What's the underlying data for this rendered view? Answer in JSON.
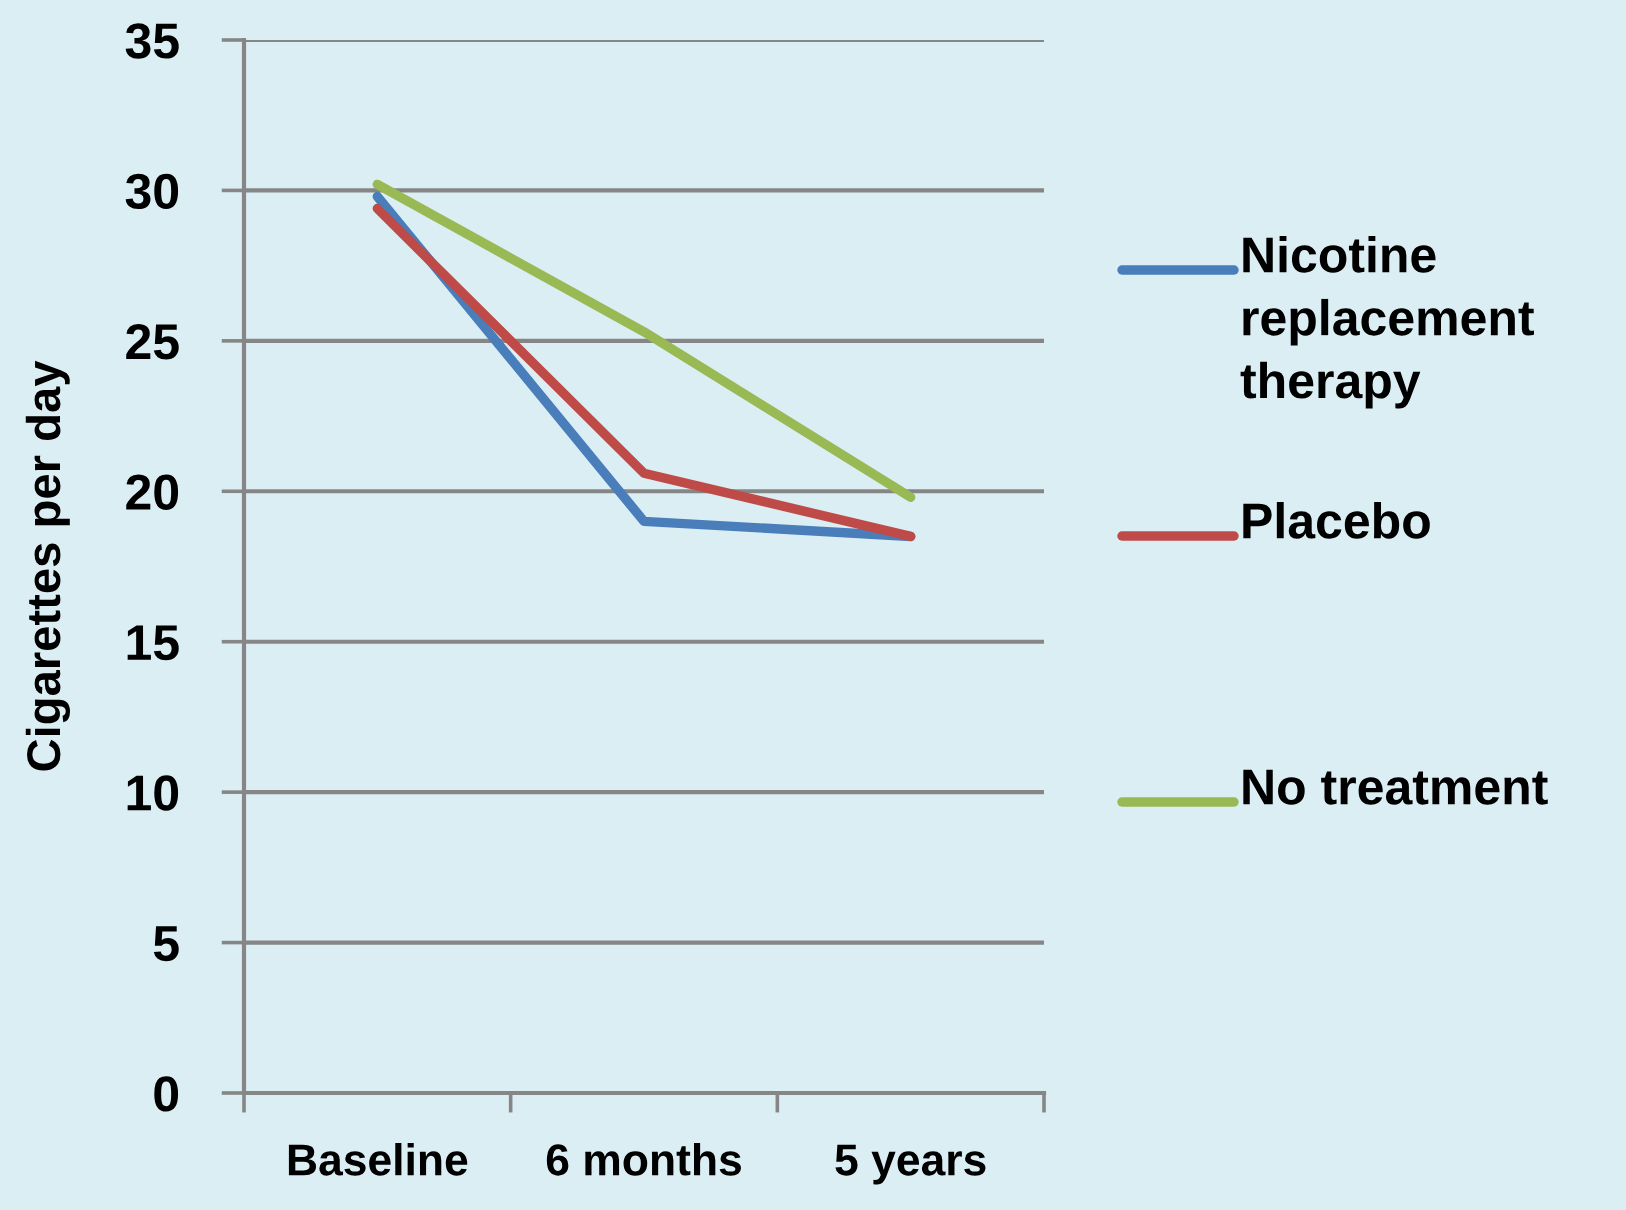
{
  "chart_data": {
    "type": "line",
    "ylabel": "Cigarettes per day",
    "categories": [
      "Baseline",
      "6 months",
      "5 years"
    ],
    "series": [
      {
        "name": "Nicotine replacement therapy",
        "color": "#4a7ebb",
        "values": [
          29.8,
          19.0,
          18.5
        ]
      },
      {
        "name": "Placebo",
        "color": "#be4b48",
        "values": [
          29.4,
          20.6,
          18.5
        ]
      },
      {
        "name": "No treatment",
        "color": "#98b954",
        "values": [
          30.2,
          25.3,
          19.8
        ]
      }
    ],
    "ylim": [
      0,
      35
    ],
    "yticks": [
      0,
      5,
      10,
      15,
      20,
      25,
      30,
      35
    ],
    "grid": "y",
    "legend": "right"
  }
}
